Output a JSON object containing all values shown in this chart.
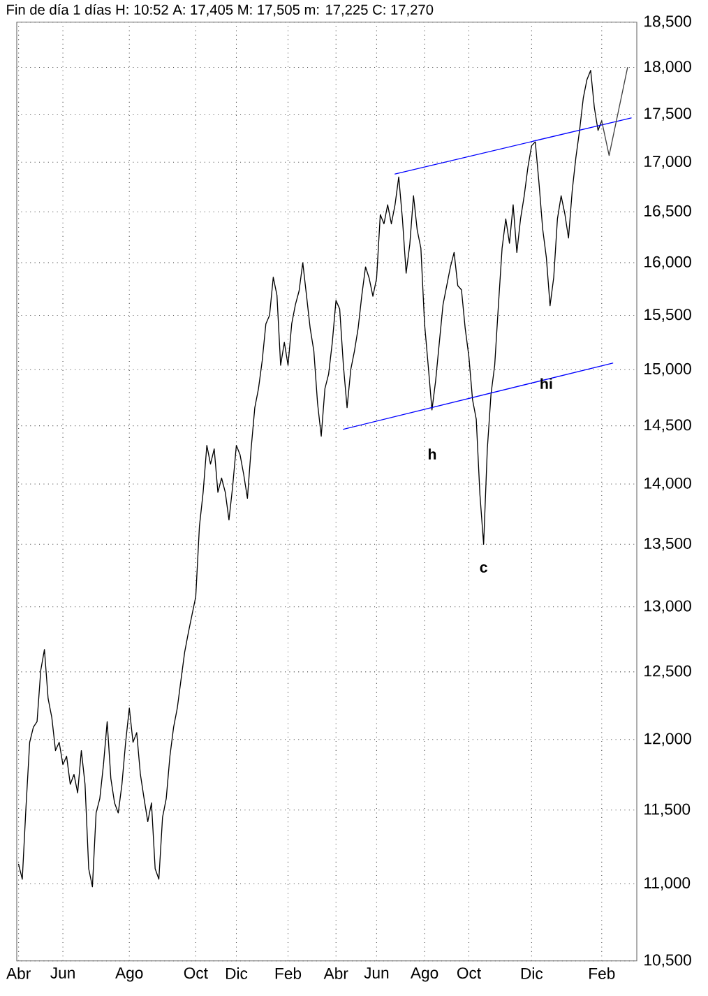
{
  "chart_data": {
    "type": "line",
    "title": "Fin de día 1 días H: 10:52 A: 17,405 M: 17,505 m: 17,225 C: 17,270",
    "log": "y",
    "grid": true,
    "categories": [
      "Abr",
      null,
      null,
      null,
      null,
      null,
      null,
      null,
      null,
      null,
      null,
      null,
      "Jun",
      null,
      null,
      null,
      null,
      null,
      null,
      null,
      null,
      null,
      null,
      null,
      null,
      null,
      null,
      null,
      null,
      null,
      "Ago",
      null,
      null,
      null,
      null,
      null,
      null,
      null,
      null,
      null,
      null,
      null,
      null,
      null,
      null,
      null,
      null,
      null,
      "Oct",
      null,
      null,
      null,
      null,
      null,
      null,
      null,
      null,
      null,
      null,
      "Dic",
      null,
      null,
      null,
      null,
      null,
      null,
      null,
      null,
      null,
      null,
      null,
      null,
      null,
      "Feb",
      null,
      null,
      null,
      null,
      null,
      null,
      null,
      null,
      null,
      null,
      null,
      null,
      "Abr",
      null,
      null,
      null,
      null,
      null,
      null,
      null,
      null,
      null,
      null,
      "Jun",
      null,
      null,
      null,
      null,
      null,
      null,
      null,
      null,
      null,
      null,
      null,
      null,
      "Ago",
      null,
      null,
      null,
      null,
      null,
      null,
      null,
      null,
      null,
      null,
      null,
      "Oct",
      null,
      null,
      null,
      null,
      null,
      null,
      null,
      null,
      null,
      null,
      null,
      null,
      null,
      null,
      null,
      null,
      "Dic",
      null,
      null,
      null,
      null,
      null,
      null,
      null,
      null,
      null,
      null,
      null,
      null,
      null,
      null,
      null,
      null,
      null,
      null,
      "Feb",
      null,
      null,
      null,
      null,
      null,
      null,
      null,
      null,
      null
    ],
    "ylim": [
      10500,
      18500
    ],
    "yticks": [
      {
        "value": 10500,
        "label": "10,500"
      },
      {
        "value": 11000,
        "label": "11,000"
      },
      {
        "value": 11500,
        "label": "11,500"
      },
      {
        "value": 12000,
        "label": "12,000"
      },
      {
        "value": 12500,
        "label": "12,500"
      },
      {
        "value": 13000,
        "label": "13,000"
      },
      {
        "value": 13500,
        "label": "13,500"
      },
      {
        "value": 14000,
        "label": "14,000"
      },
      {
        "value": 14500,
        "label": "14,500"
      },
      {
        "value": 15000,
        "label": "15,000"
      },
      {
        "value": 15500,
        "label": "15,500"
      },
      {
        "value": 16000,
        "label": "16,000"
      },
      {
        "value": 16500,
        "label": "16,500"
      },
      {
        "value": 17000,
        "label": "17,000"
      },
      {
        "value": 17500,
        "label": "17,500"
      },
      {
        "value": 18000,
        "label": "18,000"
      },
      {
        "value": 18500,
        "label": "18,500"
      }
    ],
    "series": [
      {
        "color": "#000000",
        "values": [
          11130,
          11030,
          11520,
          11980,
          12090,
          12130,
          12510,
          12670,
          12300,
          12160,
          11920,
          11980,
          11820,
          11880,
          11680,
          11750,
          11620,
          11920,
          11680,
          11100,
          10980,
          11480,
          11580,
          11820,
          12130,
          11720,
          11550,
          11480,
          11680,
          11980,
          12230,
          11980,
          12050,
          11750,
          11580,
          11420,
          11550,
          11100,
          11030,
          11450,
          11580,
          11880,
          12090,
          12230,
          12440,
          12650,
          12800,
          12940,
          13080,
          13650,
          13930,
          14330,
          14170,
          14300,
          13930,
          14050,
          13930,
          13700,
          13980,
          14330,
          14250,
          14080,
          13880,
          14300,
          14660,
          14830,
          15080,
          15420,
          15500,
          15860,
          15690,
          15040,
          15250,
          15040,
          15420,
          15600,
          15730,
          16000,
          15690,
          15380,
          15170,
          14700,
          14410,
          14830,
          14960,
          15250,
          15640,
          15560,
          15040,
          14660,
          15000,
          15170,
          15380,
          15690,
          15960,
          15850,
          15680,
          15850,
          16470,
          16380,
          16570,
          16380,
          16570,
          16850,
          16430,
          15900,
          16180,
          16660,
          16320,
          16140,
          15420,
          15030,
          14640,
          14900,
          15250,
          15600,
          15780,
          15960,
          16100,
          15780,
          15740,
          15380,
          15120,
          14730,
          14560,
          13910,
          13500,
          14300,
          14780,
          15040,
          15590,
          16140,
          16430,
          16190,
          16570,
          16100,
          16430,
          16660,
          16950,
          17170,
          17210,
          16790,
          16330,
          16050,
          15590,
          15860,
          16430,
          16660,
          16480,
          16240,
          16710,
          17050,
          17330,
          17670,
          17870,
          17970,
          17570,
          17330,
          17430,
          null,
          null,
          null,
          null,
          null,
          null,
          null,
          null,
          null
        ]
      },
      {
        "color": "#0000ff",
        "values": [
          null,
          null,
          null,
          null,
          null,
          null,
          null,
          null,
          null,
          null,
          null,
          null,
          null,
          null,
          null,
          null,
          null,
          null,
          null,
          null,
          null,
          null,
          null,
          null,
          null,
          null,
          null,
          null,
          null,
          null,
          null,
          null,
          null,
          null,
          null,
          null,
          null,
          null,
          null,
          null,
          null,
          null,
          null,
          null,
          null,
          null,
          null,
          null,
          null,
          null,
          null,
          null,
          null,
          null,
          null,
          null,
          null,
          null,
          null,
          null,
          null,
          null,
          null,
          null,
          null,
          null,
          null,
          null,
          null,
          null,
          null,
          null,
          null,
          null,
          null,
          null,
          null,
          null,
          null,
          null,
          null,
          null,
          null,
          null,
          null,
          null,
          null,
          null,
          null,
          null,
          null,
          null,
          null,
          null,
          null,
          null,
          null,
          null,
          null,
          null,
          null,
          null,
          16880,
          null,
          null,
          null,
          null,
          null,
          null,
          null,
          null,
          null,
          null,
          null,
          null,
          null,
          null,
          null,
          null,
          null,
          null,
          null,
          null,
          null,
          null,
          null,
          null,
          null,
          null,
          null,
          null,
          null,
          null,
          null,
          null,
          null,
          null,
          null,
          null,
          null,
          null,
          null,
          null,
          null,
          null,
          null,
          null,
          null,
          null,
          null,
          null,
          null,
          null,
          null,
          null,
          null,
          null,
          null,
          null,
          null,
          null,
          null,
          null,
          null,
          null,
          null,
          17460,
          null
        ]
      },
      {
        "color": "#0000ff",
        "values": [
          null,
          null,
          null,
          null,
          null,
          null,
          null,
          null,
          null,
          null,
          null,
          null,
          null,
          null,
          null,
          null,
          null,
          null,
          null,
          null,
          null,
          null,
          null,
          null,
          null,
          null,
          null,
          null,
          null,
          null,
          null,
          null,
          null,
          null,
          null,
          null,
          null,
          null,
          null,
          null,
          null,
          null,
          null,
          null,
          null,
          null,
          null,
          null,
          null,
          null,
          null,
          null,
          null,
          null,
          null,
          null,
          null,
          null,
          null,
          null,
          null,
          null,
          null,
          null,
          null,
          null,
          null,
          null,
          null,
          null,
          null,
          null,
          null,
          null,
          null,
          null,
          null,
          null,
          null,
          null,
          null,
          null,
          null,
          null,
          null,
          null,
          null,
          null,
          14470,
          null,
          null,
          null,
          null,
          null,
          null,
          null,
          null,
          null,
          null,
          null,
          null,
          null,
          null,
          null,
          null,
          null,
          null,
          null,
          null,
          null,
          null,
          null,
          null,
          null,
          null,
          null,
          null,
          null,
          null,
          null,
          null,
          null,
          null,
          null,
          null,
          null,
          null,
          null,
          null,
          null,
          null,
          null,
          null,
          null,
          null,
          null,
          null,
          null,
          null,
          null,
          null,
          null,
          null,
          null,
          null,
          null,
          null,
          null,
          null,
          null,
          null,
          null,
          null,
          null,
          null,
          null,
          null,
          null,
          null,
          null,
          null,
          15060,
          null,
          null,
          null,
          null,
          null,
          null
        ]
      },
      {
        "color": "#404040",
        "values": [
          null,
          null,
          null,
          null,
          null,
          null,
          null,
          null,
          null,
          null,
          null,
          null,
          null,
          null,
          null,
          null,
          null,
          null,
          null,
          null,
          null,
          null,
          null,
          null,
          null,
          null,
          null,
          null,
          null,
          null,
          null,
          null,
          null,
          null,
          null,
          null,
          null,
          null,
          null,
          null,
          null,
          null,
          null,
          null,
          null,
          null,
          null,
          null,
          null,
          null,
          null,
          null,
          null,
          null,
          null,
          null,
          null,
          null,
          null,
          null,
          null,
          null,
          null,
          null,
          null,
          null,
          null,
          null,
          null,
          null,
          null,
          null,
          null,
          null,
          null,
          null,
          null,
          null,
          null,
          null,
          null,
          null,
          null,
          null,
          null,
          null,
          null,
          null,
          null,
          null,
          null,
          null,
          null,
          null,
          null,
          null,
          null,
          null,
          null,
          null,
          null,
          null,
          null,
          null,
          null,
          null,
          null,
          null,
          null,
          null,
          null,
          null,
          null,
          null,
          null,
          null,
          null,
          null,
          null,
          null,
          null,
          null,
          null,
          null,
          null,
          null,
          null,
          null,
          null,
          null,
          null,
          null,
          null,
          null,
          null,
          null,
          null,
          null,
          null,
          null,
          null,
          null,
          null,
          null,
          null,
          null,
          null,
          null,
          null,
          null,
          null,
          null,
          null,
          null,
          null,
          null,
          null,
          null,
          17430,
          null,
          17070,
          null,
          null,
          null,
          null,
          18000,
          null,
          null
        ]
      }
    ],
    "annotations": [
      "h",
      "c",
      "hi"
    ]
  }
}
